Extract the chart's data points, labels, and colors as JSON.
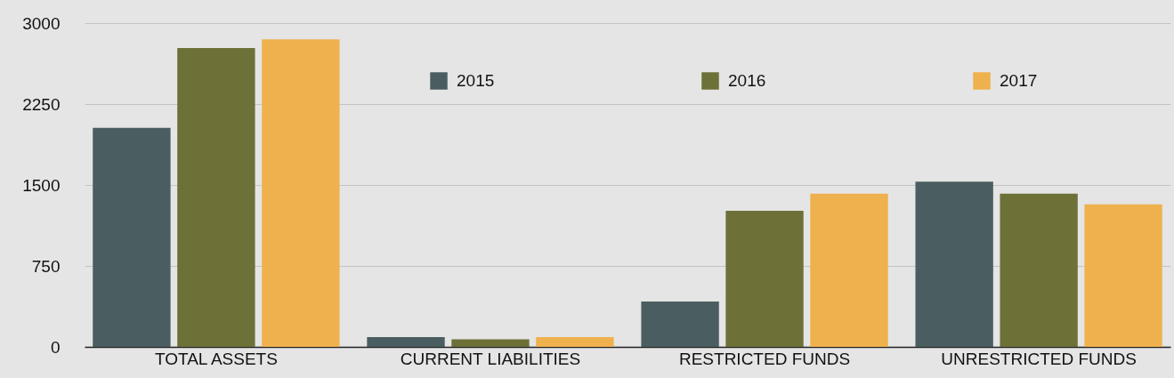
{
  "chart_data": {
    "type": "bar",
    "categories": [
      "TOTAL ASSETS",
      "CURRENT LIABILITIES",
      "RESTRICTED FUNDS",
      "UNRESTRICTED FUNDS"
    ],
    "series": [
      {
        "name": "2015",
        "color": "#4a5e61",
        "values": [
          2030,
          90,
          420,
          1530
        ]
      },
      {
        "name": "2016",
        "color": "#6d7138",
        "values": [
          2770,
          70,
          1260,
          1420
        ]
      },
      {
        "name": "2017",
        "color": "#efb14e",
        "values": [
          2850,
          90,
          1420,
          1320
        ]
      }
    ],
    "ylim": [
      0,
      3000
    ],
    "yticks": [
      0,
      750,
      1500,
      2250,
      3000
    ],
    "grid": "y",
    "legend": "top"
  }
}
